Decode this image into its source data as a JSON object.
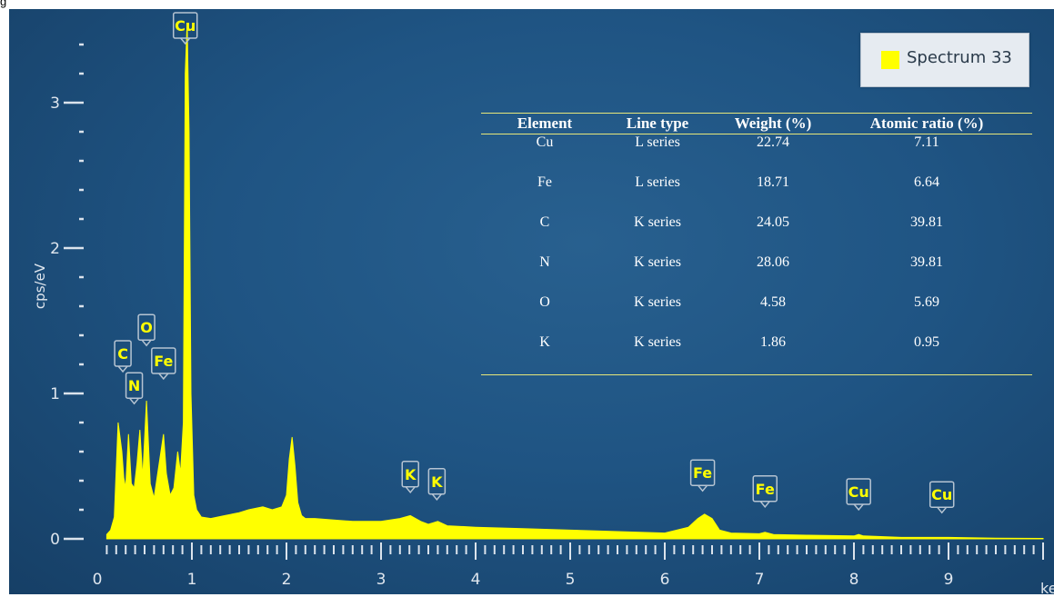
{
  "header_text": "g",
  "legend": {
    "label": "Spectrum 33",
    "color": "#ffff00"
  },
  "table": {
    "headers": [
      "Element",
      "Line type",
      "Weight (%)",
      "Atomic ratio (%)"
    ],
    "rows": [
      [
        "Cu",
        "L series",
        "22.74",
        "7.11"
      ],
      [
        "Fe",
        "L series",
        "18.71",
        "6.64"
      ],
      [
        "C",
        "K series",
        "24.05",
        "39.81"
      ],
      [
        "N",
        "K series",
        "28.06",
        "39.81"
      ],
      [
        "O",
        "K series",
        "4.58",
        "5.69"
      ],
      [
        "K",
        "K series",
        "1.86",
        "0.95"
      ]
    ]
  },
  "chart_data": {
    "type": "area",
    "xlabel": "keV",
    "ylabel": "cps/eV",
    "xlim": [
      0,
      10
    ],
    "ylim": [
      0,
      3.4
    ],
    "x_ticks": [
      "0",
      "1",
      "2",
      "3",
      "4",
      "5",
      "6",
      "7",
      "8",
      "9"
    ],
    "y_ticks": [
      "0",
      "1",
      "2",
      "3"
    ],
    "series": [
      {
        "name": "Spectrum 33",
        "color": "#ffff00",
        "x": [
          0.1,
          0.14,
          0.18,
          0.22,
          0.26,
          0.28,
          0.3,
          0.33,
          0.36,
          0.39,
          0.42,
          0.45,
          0.48,
          0.52,
          0.56,
          0.6,
          0.65,
          0.7,
          0.73,
          0.77,
          0.81,
          0.85,
          0.88,
          0.91,
          0.93,
          0.95,
          0.97,
          0.99,
          1.02,
          1.05,
          1.1,
          1.2,
          1.35,
          1.5,
          1.6,
          1.75,
          1.85,
          1.95,
          2.0,
          2.03,
          2.06,
          2.09,
          2.12,
          2.16,
          2.2,
          2.3,
          2.5,
          2.7,
          3.0,
          3.2,
          3.31,
          3.42,
          3.5,
          3.6,
          3.7,
          4.0,
          4.5,
          5.0,
          5.5,
          6.0,
          6.25,
          6.35,
          6.42,
          6.5,
          6.58,
          6.7,
          7.0,
          7.06,
          7.15,
          7.5,
          8.0,
          8.05,
          8.1,
          8.5,
          8.9,
          9.0,
          9.5,
          10.0
        ],
        "values": [
          0.03,
          0.06,
          0.15,
          0.8,
          0.6,
          0.42,
          0.35,
          0.72,
          0.38,
          0.35,
          0.52,
          0.75,
          0.42,
          0.95,
          0.38,
          0.28,
          0.5,
          0.72,
          0.45,
          0.3,
          0.35,
          0.6,
          0.45,
          0.8,
          3.2,
          3.55,
          2.8,
          1.0,
          0.3,
          0.2,
          0.15,
          0.14,
          0.16,
          0.18,
          0.2,
          0.22,
          0.2,
          0.22,
          0.3,
          0.55,
          0.7,
          0.5,
          0.25,
          0.16,
          0.14,
          0.14,
          0.13,
          0.12,
          0.12,
          0.14,
          0.16,
          0.12,
          0.1,
          0.12,
          0.09,
          0.08,
          0.07,
          0.06,
          0.05,
          0.04,
          0.08,
          0.14,
          0.17,
          0.14,
          0.06,
          0.04,
          0.035,
          0.045,
          0.03,
          0.025,
          0.02,
          0.03,
          0.02,
          0.01,
          0.01,
          0.01,
          0.005,
          0.003
        ]
      }
    ],
    "peak_labels": [
      {
        "label": "Cu",
        "x": 0.93,
        "y": 3.6
      },
      {
        "label": "C",
        "x": 0.27,
        "y": 1.15
      },
      {
        "label": "O",
        "x": 0.52,
        "y": 1.33
      },
      {
        "label": "N",
        "x": 0.39,
        "y": 0.93
      },
      {
        "label": "Fe",
        "x": 0.7,
        "y": 1.1
      },
      {
        "label": "K",
        "x": 3.31,
        "y": 0.32
      },
      {
        "label": "K",
        "x": 3.59,
        "y": 0.27
      },
      {
        "label": "Fe",
        "x": 6.4,
        "y": 0.33
      },
      {
        "label": "Fe",
        "x": 7.06,
        "y": 0.22
      },
      {
        "label": "Cu",
        "x": 8.05,
        "y": 0.2
      },
      {
        "label": "Cu",
        "x": 8.93,
        "y": 0.18
      }
    ]
  }
}
